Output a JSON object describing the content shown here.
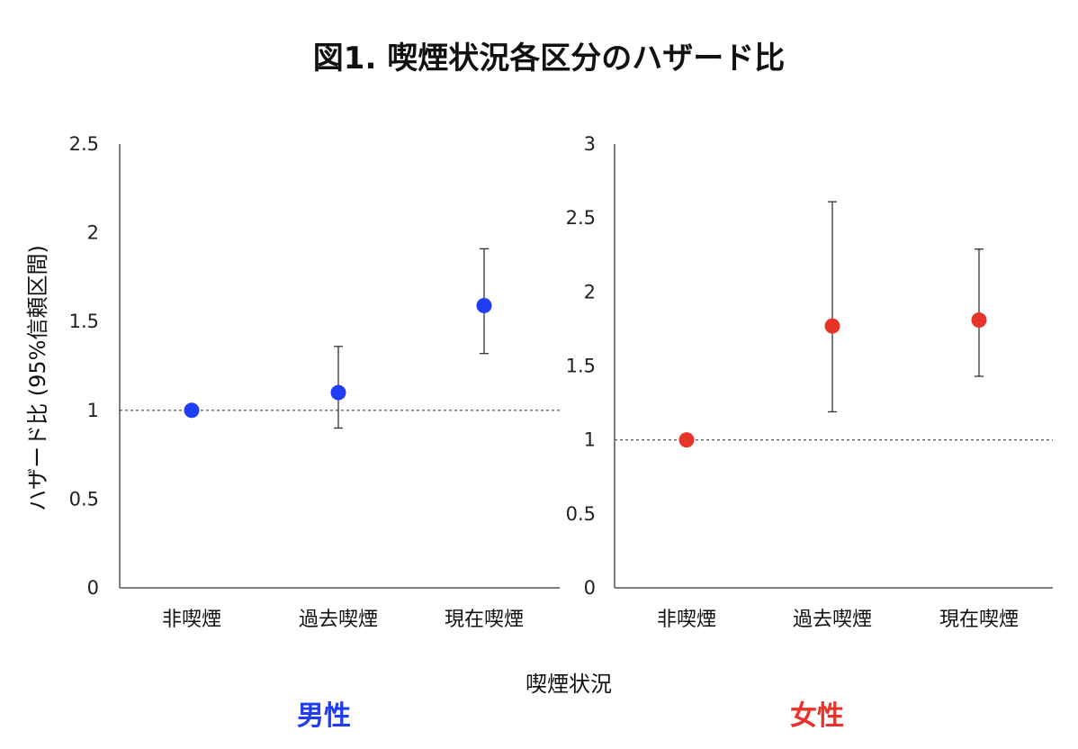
{
  "figure": {
    "title": "図1. 喫煙状況各区分のハザード比",
    "ylabel": "ハザード比 (95%信頼区間)",
    "xlabel": "喫煙状況"
  },
  "chart_data": [
    {
      "type": "scatter",
      "panel_label": "男性",
      "color": "#1f3df5",
      "categories": [
        "非喫煙",
        "過去喫煙",
        "現在喫煙"
      ],
      "values": [
        1.0,
        1.1,
        1.59
      ],
      "ci_lower": [
        1.0,
        0.9,
        1.32
      ],
      "ci_upper": [
        1.0,
        1.36,
        1.91
      ],
      "reference_line": 1,
      "ylim": [
        0,
        2.5
      ],
      "yticks": [
        0,
        0.5,
        1,
        1.5,
        2,
        2.5
      ],
      "ytick_labels": [
        "0",
        "0.5",
        "1",
        "1.5",
        "2",
        "2.5"
      ]
    },
    {
      "type": "scatter",
      "panel_label": "女性",
      "color": "#e8332a",
      "categories": [
        "非喫煙",
        "過去喫煙",
        "現在喫煙"
      ],
      "values": [
        1.0,
        1.77,
        1.81
      ],
      "ci_lower": [
        1.0,
        1.19,
        1.43
      ],
      "ci_upper": [
        1.0,
        2.61,
        2.29
      ],
      "reference_line": 1,
      "ylim": [
        0,
        3
      ],
      "yticks": [
        0,
        0.5,
        1,
        1.5,
        2,
        2.5,
        3
      ],
      "ytick_labels": [
        "0",
        "0.5",
        "1",
        "1.5",
        "2",
        "2.5",
        "3"
      ]
    }
  ]
}
